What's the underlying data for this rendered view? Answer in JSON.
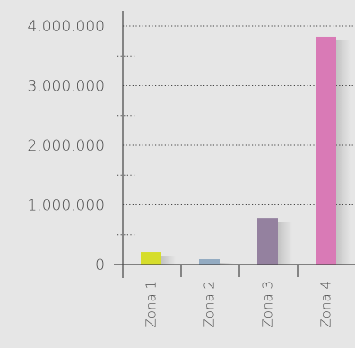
{
  "chart_data": {
    "type": "bar",
    "categories": [
      "Zona 1",
      "Zona 2",
      "Zona 3",
      "Zona 4"
    ],
    "values": [
      210000,
      90000,
      780000,
      3820000
    ],
    "colors": [
      "#d6dd2b",
      "#93abc2",
      "#94819f",
      "#d97ab6"
    ],
    "ylim": [
      0,
      4000000
    ],
    "yticks": [
      0,
      1000000,
      2000000,
      3000000,
      4000000
    ],
    "ytick_labels": [
      "0",
      "1.000.000",
      "2.000.000",
      "3.000.000",
      "4.000.000"
    ],
    "minor_grid": [
      500000,
      1500000,
      2500000,
      3500000
    ],
    "grid": true,
    "title": "",
    "xlabel": "",
    "ylabel": ""
  }
}
